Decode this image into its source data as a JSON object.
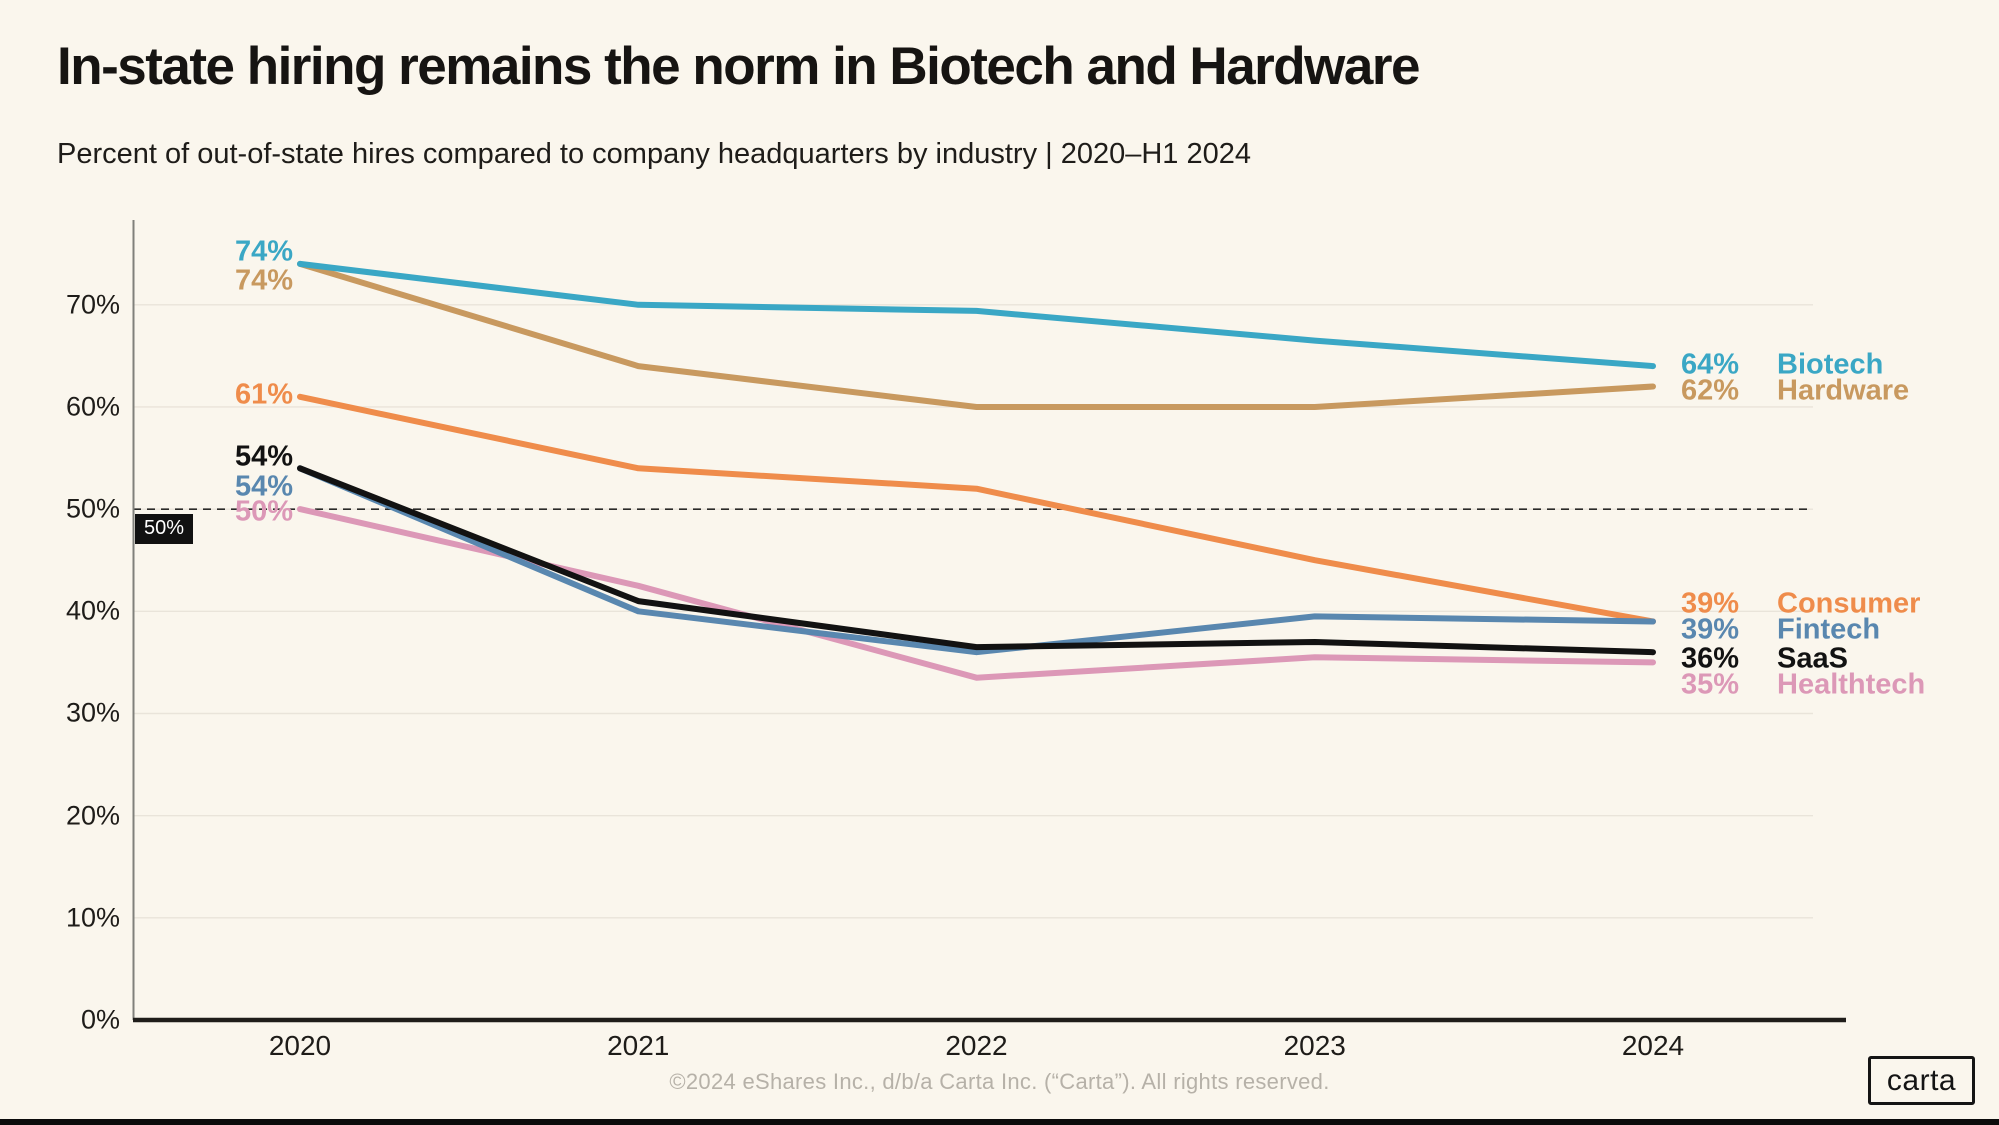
{
  "title": "In-state hiring remains the norm in Biotech and Hardware",
  "subtitle": "Percent of out-of-state hires compared to company headquarters by industry |  2020–H1 2024",
  "footer": "©2024 eShares Inc., d/b/a Carta Inc. (“Carta”). All rights reserved.",
  "logo": "carta",
  "chart_data": {
    "type": "line",
    "x_labels": [
      "2020",
      "2021",
      "2022",
      "2023",
      "2024"
    ],
    "yticks": [
      "0%",
      "10%",
      "20%",
      "30%",
      "40%",
      "50%",
      "60%",
      "70%"
    ],
    "ytick_values": [
      0,
      10,
      20,
      30,
      40,
      50,
      60,
      70
    ],
    "ylim": [
      0,
      78
    ],
    "grid": true,
    "legend_position": "right-end-labels",
    "reference_line": {
      "value": 50,
      "label": "50%"
    },
    "series": [
      {
        "name": "Biotech",
        "color": "#3AA7C5",
        "values": [
          74,
          70,
          69.4,
          66.5,
          64
        ],
        "start_label": "74%",
        "end_label": "64%"
      },
      {
        "name": "Hardware",
        "color": "#C8995F",
        "values": [
          74,
          64,
          60,
          60,
          62
        ],
        "start_label": "74%",
        "end_label": "62%"
      },
      {
        "name": "Consumer",
        "color": "#EF8C4B",
        "values": [
          61,
          54,
          52,
          45,
          39
        ],
        "start_label": "61%",
        "end_label": "39%"
      },
      {
        "name": "Fintech",
        "color": "#5987AF",
        "values": [
          54,
          40,
          36,
          39.5,
          39
        ],
        "start_label": "54%",
        "end_label": "39%"
      },
      {
        "name": "SaaS",
        "color": "#121212",
        "values": [
          54,
          41,
          36.5,
          37,
          36
        ],
        "start_label": "54%",
        "end_label": "36%"
      },
      {
        "name": "Healthtech",
        "color": "#DC98B7",
        "values": [
          50,
          42.5,
          33.5,
          35.5,
          35
        ],
        "start_label": "50%",
        "end_label": "35%"
      }
    ]
  }
}
